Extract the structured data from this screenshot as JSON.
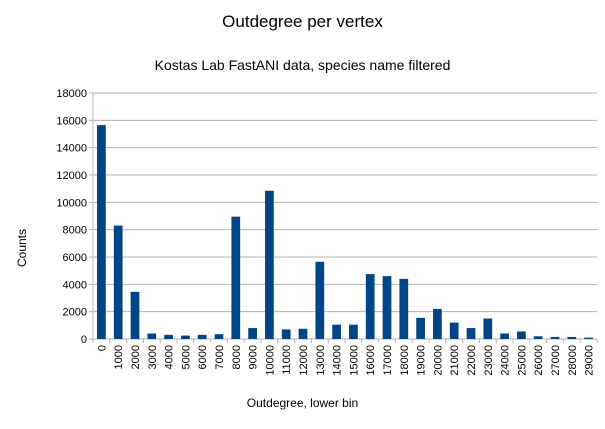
{
  "chart_data": {
    "type": "bar",
    "title": "Outdegree per vertex",
    "subtitle": "Kostas Lab FastANI data, species name filtered",
    "xlabel": "Outdegree, lower bin",
    "ylabel": "Counts",
    "ylim": [
      0,
      18000
    ],
    "yticks": [
      0,
      2000,
      4000,
      6000,
      8000,
      10000,
      12000,
      14000,
      16000,
      18000
    ],
    "grid": true,
    "legend": "none",
    "bar_color": "#004586",
    "categories": [
      "0",
      "1000",
      "2000",
      "3000",
      "4000",
      "5000",
      "6000",
      "7000",
      "8000",
      "9000",
      "10000",
      "11000",
      "12000",
      "13000",
      "14000",
      "15000",
      "16000",
      "17000",
      "18000",
      "19000",
      "20000",
      "21000",
      "22000",
      "23000",
      "24000",
      "25000",
      "26000",
      "27000",
      "28000",
      "29000"
    ],
    "values": [
      15650,
      8300,
      3450,
      400,
      300,
      250,
      300,
      350,
      8950,
      800,
      10850,
      700,
      750,
      5650,
      1050,
      1050,
      4750,
      4600,
      4400,
      1550,
      2200,
      1200,
      800,
      1500,
      400,
      550,
      200,
      150,
      150,
      100
    ]
  }
}
